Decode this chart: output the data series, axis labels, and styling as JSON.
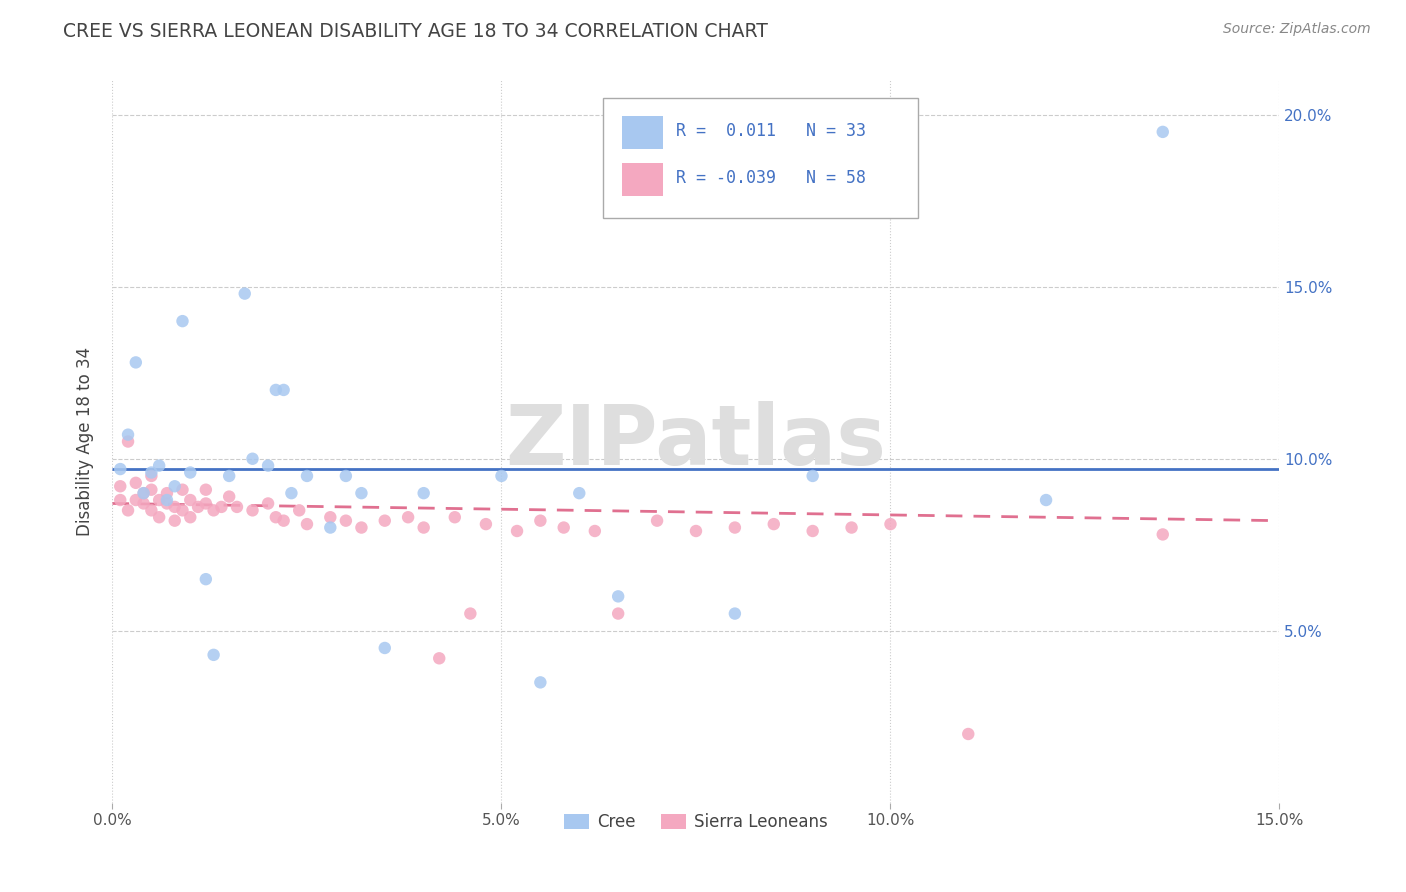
{
  "title": "CREE VS SIERRA LEONEAN DISABILITY AGE 18 TO 34 CORRELATION CHART",
  "source": "Source: ZipAtlas.com",
  "ylabel": "Disability Age 18 to 34",
  "xlim": [
    0.0,
    0.15
  ],
  "ylim": [
    0.0,
    0.21
  ],
  "xticks": [
    0.0,
    0.05,
    0.1,
    0.15
  ],
  "xticklabels": [
    "0.0%",
    "5.0%",
    "10.0%",
    "15.0%"
  ],
  "yticks": [
    0.05,
    0.1,
    0.15,
    0.2
  ],
  "yticklabels": [
    "5.0%",
    "10.0%",
    "15.0%",
    "20.0%"
  ],
  "cree_r": "0.011",
  "cree_n": "33",
  "sierra_r": "-0.039",
  "sierra_n": "58",
  "cree_color": "#a8c8f0",
  "sierra_color": "#f4a8c0",
  "cree_line_color": "#4472c4",
  "sierra_line_color": "#e07090",
  "tick_color": "#4472c4",
  "cree_points_x": [
    0.001,
    0.002,
    0.003,
    0.004,
    0.005,
    0.006,
    0.007,
    0.008,
    0.009,
    0.01,
    0.012,
    0.013,
    0.015,
    0.017,
    0.018,
    0.02,
    0.021,
    0.022,
    0.023,
    0.025,
    0.028,
    0.03,
    0.032,
    0.035,
    0.04,
    0.05,
    0.055,
    0.06,
    0.065,
    0.08,
    0.09,
    0.12,
    0.135
  ],
  "cree_points_y": [
    0.097,
    0.107,
    0.128,
    0.09,
    0.096,
    0.098,
    0.088,
    0.092,
    0.14,
    0.096,
    0.065,
    0.043,
    0.095,
    0.148,
    0.1,
    0.098,
    0.12,
    0.12,
    0.09,
    0.095,
    0.08,
    0.095,
    0.09,
    0.045,
    0.09,
    0.095,
    0.035,
    0.09,
    0.06,
    0.055,
    0.095,
    0.088,
    0.195
  ],
  "sierra_points_x": [
    0.001,
    0.001,
    0.002,
    0.002,
    0.003,
    0.003,
    0.004,
    0.004,
    0.005,
    0.005,
    0.005,
    0.006,
    0.006,
    0.007,
    0.007,
    0.008,
    0.008,
    0.009,
    0.009,
    0.01,
    0.01,
    0.011,
    0.012,
    0.012,
    0.013,
    0.014,
    0.015,
    0.016,
    0.018,
    0.02,
    0.021,
    0.022,
    0.024,
    0.025,
    0.028,
    0.03,
    0.032,
    0.035,
    0.038,
    0.04,
    0.042,
    0.044,
    0.046,
    0.048,
    0.052,
    0.055,
    0.058,
    0.062,
    0.065,
    0.07,
    0.075,
    0.08,
    0.085,
    0.09,
    0.095,
    0.1,
    0.11,
    0.135
  ],
  "sierra_points_y": [
    0.088,
    0.092,
    0.085,
    0.105,
    0.088,
    0.093,
    0.087,
    0.09,
    0.085,
    0.091,
    0.095,
    0.083,
    0.088,
    0.087,
    0.09,
    0.082,
    0.086,
    0.085,
    0.091,
    0.083,
    0.088,
    0.086,
    0.087,
    0.091,
    0.085,
    0.086,
    0.089,
    0.086,
    0.085,
    0.087,
    0.083,
    0.082,
    0.085,
    0.081,
    0.083,
    0.082,
    0.08,
    0.082,
    0.083,
    0.08,
    0.042,
    0.083,
    0.055,
    0.081,
    0.079,
    0.082,
    0.08,
    0.079,
    0.055,
    0.082,
    0.079,
    0.08,
    0.081,
    0.079,
    0.08,
    0.081,
    0.02,
    0.078
  ]
}
